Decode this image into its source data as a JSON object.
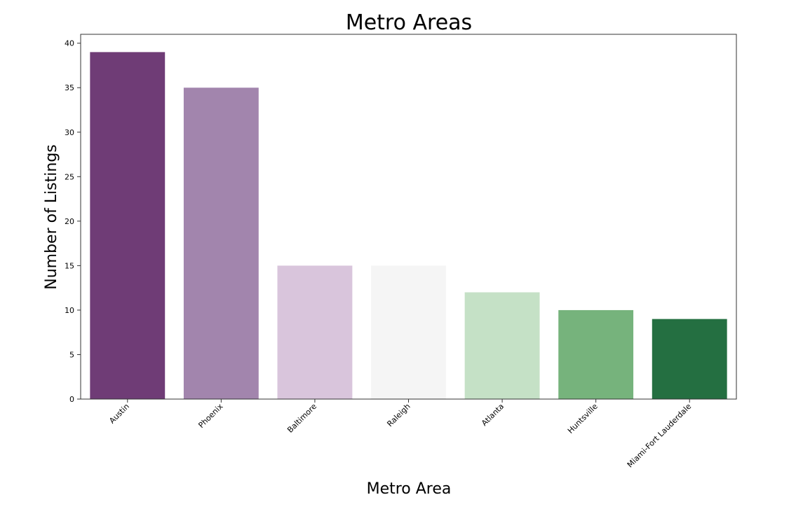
{
  "chart_data": {
    "type": "bar",
    "title": "Metro Areas",
    "xlabel": "Metro Area",
    "ylabel": "Number of Listings",
    "categories": [
      "Austin",
      "Phoenix",
      "Baltimore",
      "Raleigh",
      "Atlanta",
      "Huntsville",
      "Miami-Fort Lauderdale"
    ],
    "values": [
      39,
      35,
      15,
      15,
      12,
      10,
      9
    ],
    "colors": [
      "#6f3c76",
      "#a285ad",
      "#d9c5dc",
      "#f5f5f5",
      "#c5e1c6",
      "#76b37c",
      "#246f41"
    ],
    "ylim": [
      0,
      41
    ],
    "yticks": [
      0,
      5,
      10,
      15,
      20,
      25,
      30,
      35,
      40
    ],
    "grid": false,
    "legend": "none"
  }
}
